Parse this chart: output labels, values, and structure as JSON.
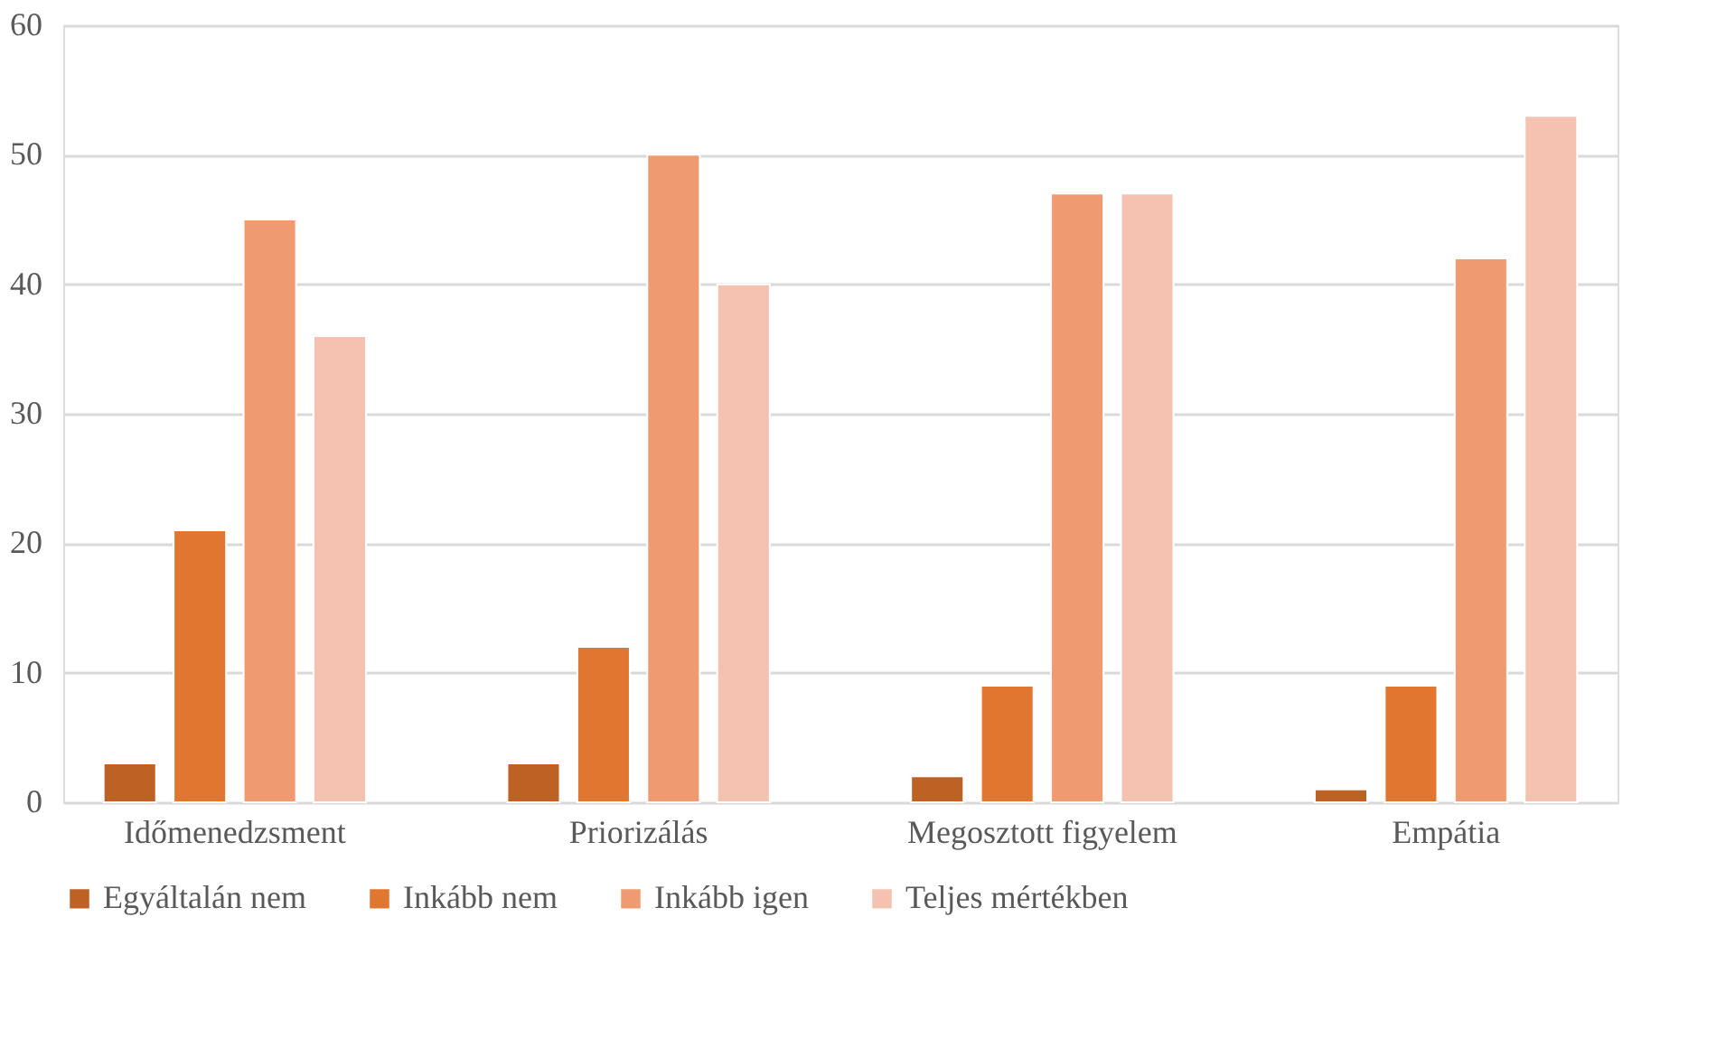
{
  "chart_data": {
    "type": "bar",
    "categories": [
      "Időmenedzsment",
      "Priorizálás",
      "Megosztott figyelem",
      "Empátia"
    ],
    "series": [
      {
        "name": "Egyáltalán nem",
        "color": "#bd6124",
        "values": [
          3,
          3,
          2,
          1
        ]
      },
      {
        "name": "Inkább nem",
        "color": "#e0762f",
        "values": [
          21,
          12,
          9,
          9
        ]
      },
      {
        "name": "Inkább igen",
        "color": "#f09a72",
        "values": [
          45,
          50,
          47,
          42
        ]
      },
      {
        "name": "Teljes mértékben",
        "color": "#f5c2b1",
        "values": [
          36,
          40,
          47,
          53
        ]
      }
    ],
    "ylim": [
      0,
      60
    ],
    "yticks": [
      0,
      10,
      20,
      30,
      40,
      50,
      60
    ],
    "grid": "y",
    "legend": "bottom"
  }
}
